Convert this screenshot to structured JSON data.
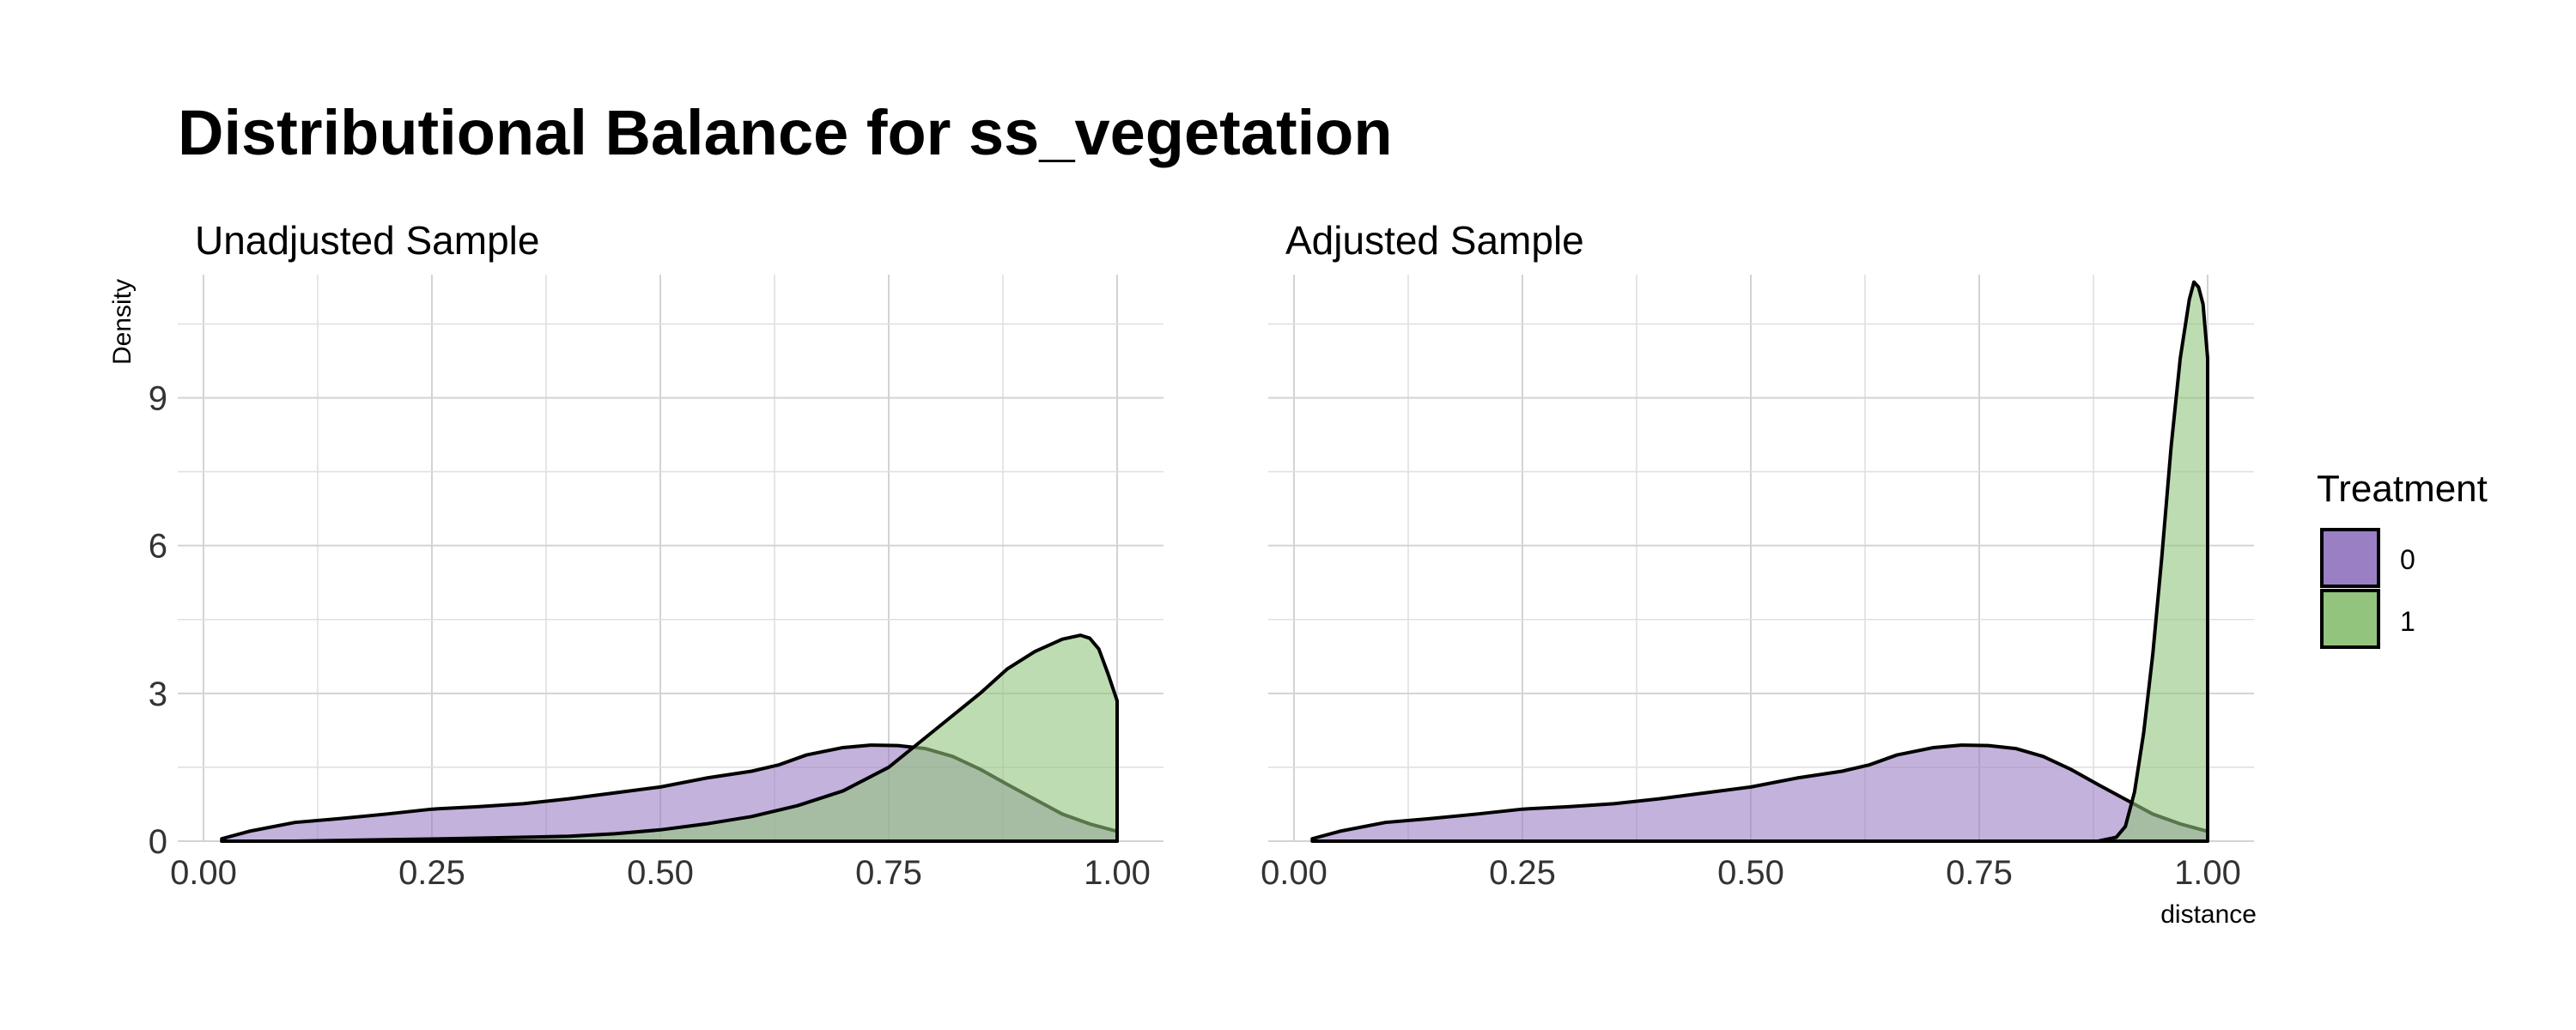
{
  "title": "Distributional Balance for ss_vegetation",
  "colors": {
    "treatment_0": "#9b7fc4",
    "treatment_1": "#93c47d",
    "outline": "#000000"
  },
  "legend": {
    "title": "Treatment",
    "items": [
      {
        "label": "0",
        "color": "#9b7fc4"
      },
      {
        "label": "1",
        "color": "#93c47d"
      }
    ]
  },
  "chart_data": [
    {
      "type": "area",
      "subtitle": "Unadjusted Sample",
      "ylabel": "Density",
      "xlabel": "",
      "xlim": [
        0,
        1
      ],
      "ylim": [
        0,
        11.5
      ],
      "x_ticks": [
        "0.00",
        "0.25",
        "0.50",
        "0.75",
        "1.00"
      ],
      "y_ticks": [
        "0",
        "3",
        "6",
        "9"
      ],
      "grid": true,
      "series": [
        {
          "name": "0",
          "x": [
            0.02,
            0.05,
            0.1,
            0.15,
            0.2,
            0.25,
            0.3,
            0.35,
            0.4,
            0.45,
            0.5,
            0.55,
            0.6,
            0.63,
            0.66,
            0.7,
            0.73,
            0.76,
            0.79,
            0.82,
            0.85,
            0.88,
            0.91,
            0.94,
            0.97,
            1.0
          ],
          "y": [
            0.05,
            0.2,
            0.38,
            0.46,
            0.55,
            0.65,
            0.7,
            0.76,
            0.86,
            0.98,
            1.1,
            1.28,
            1.42,
            1.55,
            1.75,
            1.9,
            1.95,
            1.94,
            1.88,
            1.72,
            1.46,
            1.15,
            0.85,
            0.55,
            0.35,
            0.2
          ]
        },
        {
          "name": "1",
          "x": [
            0.02,
            0.1,
            0.2,
            0.3,
            0.4,
            0.45,
            0.5,
            0.55,
            0.6,
            0.65,
            0.7,
            0.75,
            0.8,
            0.85,
            0.88,
            0.91,
            0.94,
            0.96,
            0.97,
            0.98,
            0.99,
            1.0
          ],
          "y": [
            0.0,
            0.0,
            0.03,
            0.06,
            0.1,
            0.15,
            0.23,
            0.35,
            0.5,
            0.72,
            1.02,
            1.5,
            2.25,
            3.0,
            3.5,
            3.85,
            4.1,
            4.18,
            4.12,
            3.9,
            3.4,
            2.85
          ]
        }
      ]
    },
    {
      "type": "area",
      "subtitle": "Adjusted Sample",
      "ylabel": "",
      "xlabel": "distance",
      "xlim": [
        0,
        1
      ],
      "ylim": [
        0,
        11.5
      ],
      "x_ticks": [
        "0.00",
        "0.25",
        "0.50",
        "0.75",
        "1.00"
      ],
      "y_ticks": [],
      "grid": true,
      "series": [
        {
          "name": "0",
          "x": [
            0.02,
            0.05,
            0.1,
            0.15,
            0.2,
            0.25,
            0.3,
            0.35,
            0.4,
            0.45,
            0.5,
            0.55,
            0.6,
            0.63,
            0.66,
            0.7,
            0.73,
            0.76,
            0.79,
            0.82,
            0.85,
            0.88,
            0.91,
            0.94,
            0.97,
            1.0
          ],
          "y": [
            0.05,
            0.2,
            0.38,
            0.46,
            0.55,
            0.65,
            0.7,
            0.76,
            0.86,
            0.98,
            1.1,
            1.28,
            1.42,
            1.55,
            1.75,
            1.9,
            1.95,
            1.94,
            1.88,
            1.72,
            1.46,
            1.15,
            0.85,
            0.55,
            0.35,
            0.2
          ]
        },
        {
          "name": "1",
          "x": [
            0.88,
            0.9,
            0.91,
            0.92,
            0.93,
            0.94,
            0.95,
            0.96,
            0.97,
            0.98,
            0.985,
            0.99,
            0.995,
            1.0
          ],
          "y": [
            0.0,
            0.08,
            0.3,
            1.0,
            2.2,
            3.8,
            5.8,
            8.0,
            9.8,
            11.0,
            11.35,
            11.25,
            10.9,
            9.8
          ]
        }
      ]
    }
  ]
}
